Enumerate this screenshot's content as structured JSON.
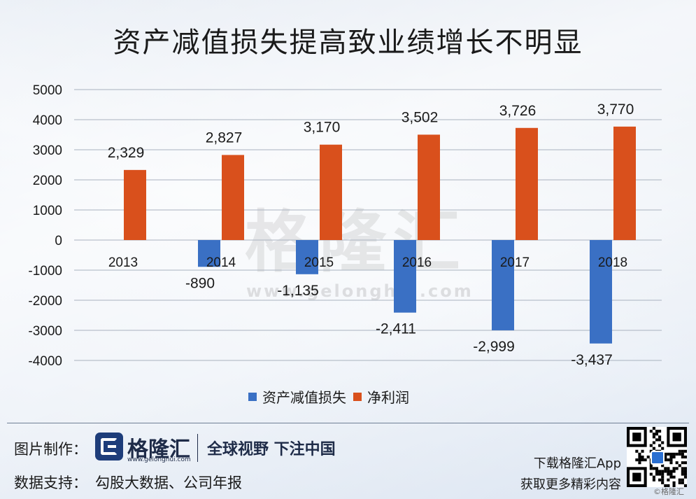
{
  "title": "资产减值损失提高致业绩增长不明显",
  "chart_data": {
    "type": "bar",
    "categories": [
      "2013",
      "2014",
      "2015",
      "2016",
      "2017",
      "2018"
    ],
    "series": [
      {
        "name": "资产减值损失",
        "values": [
          null,
          -890,
          -1135,
          -2411,
          -2999,
          -3437
        ],
        "labels": [
          "",
          "-890",
          "-1,135",
          "-2,411",
          "-2,999",
          "-3,437"
        ],
        "color": "#3a70c4"
      },
      {
        "name": "净利润",
        "values": [
          2329,
          2827,
          3170,
          3502,
          3726,
          3770
        ],
        "labels": [
          "2,329",
          "2,827",
          "3,170",
          "3,502",
          "3,726",
          "3,770"
        ],
        "color": "#d9501c"
      }
    ],
    "ylim": [
      -4000,
      5000
    ],
    "yticks": [
      "-4000",
      "-3000",
      "-2000",
      "-1000",
      "0",
      "1000",
      "2000",
      "3000",
      "4000",
      "5000"
    ],
    "grid": true,
    "legend_position": "bottom"
  },
  "watermark": {
    "name": "格隆汇",
    "url": "www.gelonghui.com"
  },
  "footer": {
    "made_by_label": "图片制作：",
    "brand_name": "格隆汇",
    "brand_url": "www.gelonghui.com",
    "slogan": "全球视野 下注中国",
    "data_support_label": "数据支持：",
    "data_source": "勾股大数据、公司年报",
    "app_line1": "下载格隆汇App",
    "app_line2": "获取更多精彩内容",
    "credit": "©格隆汇"
  }
}
